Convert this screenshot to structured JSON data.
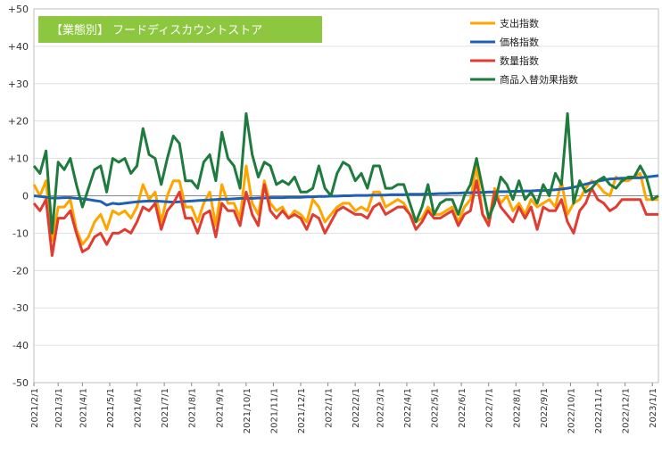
{
  "chart_data": {
    "type": "line",
    "title": "【業態別】 フードディスカウントストア",
    "title_box_color": "#8dc63f",
    "xlabel": "",
    "ylabel": "",
    "ylim": [
      -50,
      50
    ],
    "y_ticks": [
      "+50",
      "+40",
      "+30",
      "+20",
      "+10",
      "0",
      "-10",
      "-20",
      "-30",
      "-40",
      "-50"
    ],
    "y_tick_values": [
      50,
      40,
      30,
      20,
      10,
      0,
      -10,
      -20,
      -30,
      -40,
      -50
    ],
    "grid": true,
    "legend_position": "top-right",
    "x_tick_labels": [
      "2021/2/1",
      "2021/3/1",
      "2021/4/1",
      "2021/5/1",
      "2021/6/1",
      "2021/7/1",
      "2021/8/1",
      "2021/9/1",
      "2021/10/1",
      "2021/11/1",
      "2021/12/1",
      "2022/1/1",
      "2022/2/1",
      "2022/3/1",
      "2022/4/1",
      "2022/5/1",
      "2022/6/1",
      "2022/7/1",
      "2022/8/1",
      "2022/9/1",
      "2022/10/1",
      "2022/11/1",
      "2022/12/1",
      "2023/1/1"
    ],
    "x_tick_weeks": [
      0,
      4,
      8,
      12.5,
      17,
      21.5,
      26,
      30.5,
      35,
      39.5,
      44,
      48.5,
      53,
      57,
      61.5,
      66,
      70.5,
      75,
      79.5,
      84,
      88.5,
      93,
      97.5,
      102
    ],
    "series": [
      {
        "name": "支出指数",
        "color": "#ffa500",
        "values": [
          3,
          0,
          4,
          -12,
          -3,
          -3,
          -1,
          -9,
          -13,
          -11,
          -7,
          -5,
          -9,
          -4,
          -5,
          -4,
          -6,
          -3,
          3,
          -1,
          1,
          -7,
          0,
          4,
          4,
          -3,
          -3,
          -7,
          -2,
          1,
          -8,
          3,
          -2,
          -2,
          -6,
          8,
          -2,
          -5,
          4,
          -2,
          -4,
          -3,
          -6,
          -4,
          -5,
          -7,
          -1,
          -3,
          -7,
          -5,
          -3,
          -2,
          -2,
          -4,
          -3,
          -4,
          1,
          1,
          -3,
          -2,
          -1,
          -2,
          -5,
          -7,
          -6,
          -3,
          -5,
          -5,
          -4,
          -3,
          -7,
          -3,
          -1,
          8,
          -5,
          -7,
          2,
          -2,
          0,
          -4,
          -2,
          -5,
          -1,
          -3,
          -2,
          -1,
          -3,
          4,
          -5,
          -2,
          -1,
          2,
          4,
          3,
          1,
          0,
          5,
          4,
          4,
          5,
          6,
          -1,
          -1,
          -1
        ]
      },
      {
        "name": "価格指数",
        "color": "#1f5fb4",
        "values": [
          0,
          -0.2,
          -0.4,
          -0.6,
          -0.6,
          -0.5,
          -0.5,
          -0.7,
          -0.8,
          -1,
          -1.3,
          -1.5,
          -2.5,
          -2,
          -2.2,
          -2,
          -1.8,
          -1.6,
          -1.5,
          -1.4,
          -1.4,
          -1.5,
          -1.6,
          -1.7,
          -1.6,
          -1.5,
          -1.4,
          -1.3,
          -1.2,
          -1.1,
          -1,
          -0.9,
          -0.9,
          -0.8,
          -0.7,
          -0.7,
          -0.7,
          -0.6,
          -0.6,
          -0.5,
          -0.5,
          -0.5,
          -0.4,
          -0.4,
          -0.4,
          -0.3,
          -0.3,
          -0.2,
          -0.2,
          -0.1,
          -0.1,
          0,
          0,
          0.1,
          0.1,
          0.1,
          0.2,
          0.2,
          0.2,
          0.3,
          0.3,
          0.3,
          0.4,
          0.4,
          0.4,
          0.5,
          0.5,
          0.6,
          0.6,
          0.7,
          0.7,
          0.8,
          0.8,
          0.9,
          0.9,
          1,
          1,
          1.1,
          1.1,
          1.2,
          1.2,
          1.3,
          1.3,
          1.4,
          1.4,
          1.5,
          1.6,
          1.8,
          2,
          2.3,
          2.7,
          3.1,
          3.5,
          3.9,
          4.2,
          4.5,
          4.6,
          4.7,
          4.7,
          4.8,
          4.8,
          5,
          5.2,
          5.4
        ]
      },
      {
        "name": "数量指数",
        "color": "#e03c31",
        "values": [
          -2,
          -4,
          -1,
          -16,
          -6,
          -6,
          -4,
          -10,
          -15,
          -14,
          -11,
          -10,
          -13,
          -10,
          -10,
          -9,
          -10,
          -7,
          -3,
          -4,
          -2,
          -9,
          -4,
          -2,
          1,
          -6,
          -6,
          -10,
          -5,
          -4,
          -11,
          -2,
          -4,
          -4,
          -8,
          1,
          -5,
          -8,
          3,
          -4,
          -6,
          -4,
          -6,
          -5,
          -6,
          -9,
          -5,
          -6,
          -10,
          -7,
          -4,
          -3,
          -4,
          -5,
          -5,
          -6,
          -3,
          -2,
          -5,
          -4,
          -3,
          -3,
          -5,
          -9,
          -7,
          -4,
          -6,
          -6,
          -5,
          -4,
          -8,
          -5,
          -4,
          4,
          -5,
          -8,
          1,
          -3,
          -5,
          -7,
          -3,
          -6,
          -3,
          -9,
          -3,
          -4,
          -4,
          -1,
          -7,
          -10,
          -4,
          -2,
          2,
          -1,
          -2,
          -4,
          -3,
          -1,
          -1,
          -1,
          -1,
          -5,
          -5,
          -5
        ]
      },
      {
        "name": "商品入替効果指数",
        "color": "#1e7b3e",
        "values": [
          8,
          6,
          12,
          -10,
          9,
          7,
          10,
          3,
          -3,
          2,
          7,
          8,
          1,
          10,
          9,
          10,
          6,
          8,
          18,
          11,
          10,
          3,
          10,
          16,
          14,
          4,
          4,
          2,
          9,
          11,
          4,
          17,
          10,
          8,
          2,
          22,
          11,
          5,
          9,
          8,
          3,
          4,
          3,
          5,
          1,
          1,
          2,
          8,
          2,
          0,
          6,
          9,
          8,
          4,
          6,
          2,
          8,
          8,
          2,
          2,
          3,
          3,
          -2,
          -7,
          -3,
          3,
          -5,
          -2,
          -1,
          -1,
          -5,
          0,
          3,
          10,
          2,
          -6,
          -2,
          5,
          3,
          -1,
          4,
          -1,
          1,
          -2,
          3,
          0,
          6,
          3,
          22,
          -2,
          4,
          1,
          2,
          4,
          5,
          3,
          2,
          4,
          5,
          5,
          8,
          5,
          -1,
          0
        ]
      }
    ]
  }
}
